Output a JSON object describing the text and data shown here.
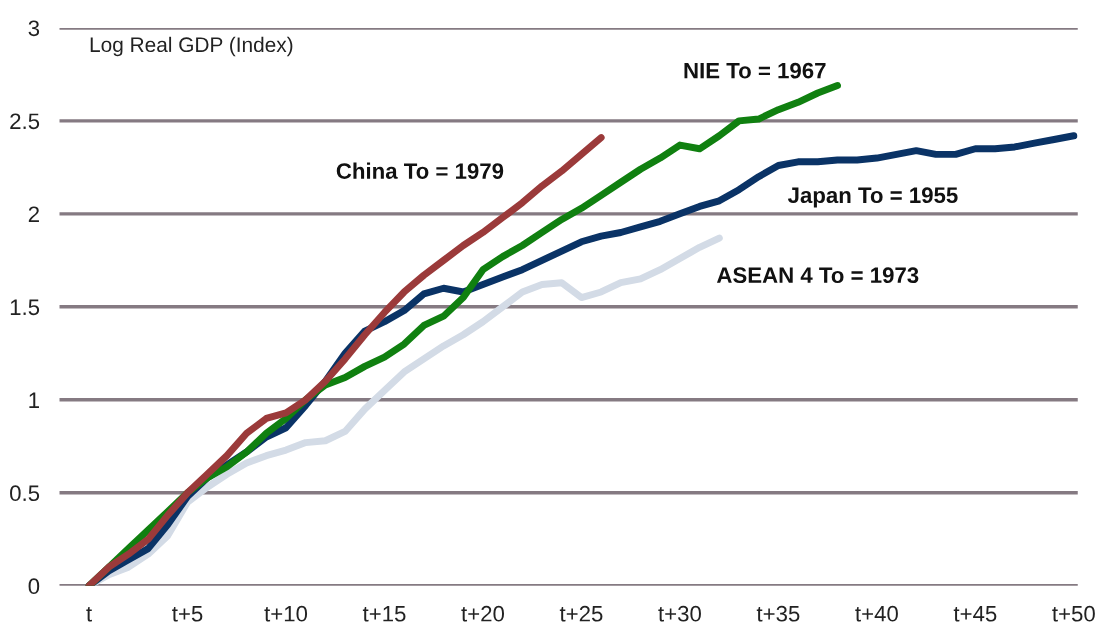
{
  "chart_data": {
    "type": "line",
    "ylabel": "Log Real GDP (Index)",
    "categories": [
      "t",
      null,
      null,
      null,
      null,
      "t+5",
      null,
      null,
      null,
      null,
      "t+10",
      null,
      null,
      null,
      null,
      "t+15",
      null,
      null,
      null,
      null,
      "t+20",
      null,
      null,
      null,
      null,
      "t+25",
      null,
      null,
      null,
      null,
      "t+30",
      null,
      null,
      null,
      null,
      "t+35",
      null,
      null,
      null,
      null,
      "t+40",
      null,
      null,
      null,
      null,
      "t+45",
      null,
      null,
      null,
      null,
      "t+50"
    ],
    "series": [
      {
        "name": "China To = 1979",
        "color": "#9b3a3a",
        "values": [
          0,
          0.1,
          0.17,
          0.25,
          0.38,
          0.5,
          0.6,
          0.7,
          0.82,
          0.9,
          0.93,
          1.0,
          1.1,
          1.22,
          1.35,
          1.47,
          1.58,
          1.67,
          1.75,
          1.83,
          1.9,
          1.98,
          2.06,
          2.15,
          2.23,
          2.32,
          2.41,
          null,
          null,
          null,
          null,
          null,
          null,
          null,
          null,
          null,
          null,
          null,
          null,
          null,
          null,
          null,
          null,
          null,
          null,
          null,
          null,
          null,
          null,
          null,
          null
        ]
      },
      {
        "name": "NIE To = 1967",
        "color": "#108010",
        "values": [
          0,
          0.1,
          0.2,
          0.3,
          0.4,
          0.5,
          0.58,
          0.64,
          0.72,
          0.82,
          0.9,
          1.0,
          1.08,
          1.12,
          1.18,
          1.23,
          1.3,
          1.4,
          1.45,
          1.55,
          1.7,
          1.77,
          1.83,
          1.9,
          1.97,
          2.03,
          2.1,
          2.17,
          2.24,
          2.3,
          2.37,
          2.35,
          2.42,
          2.5,
          2.51,
          2.56,
          2.6,
          2.65,
          2.69,
          null,
          null,
          null,
          null,
          null,
          null,
          null,
          null,
          null,
          null,
          null,
          null
        ]
      },
      {
        "name": "Japan To = 1955",
        "color": "#0a3366",
        "values": [
          0,
          0.08,
          0.14,
          0.2,
          0.33,
          0.48,
          0.58,
          0.65,
          0.72,
          0.8,
          0.85,
          0.97,
          1.1,
          1.25,
          1.37,
          1.42,
          1.48,
          1.57,
          1.6,
          1.58,
          1.62,
          1.66,
          1.7,
          1.75,
          1.8,
          1.85,
          1.88,
          1.9,
          1.93,
          1.96,
          2.0,
          2.04,
          2.07,
          2.13,
          2.2,
          2.26,
          2.28,
          2.28,
          2.29,
          2.29,
          2.3,
          2.32,
          2.34,
          2.32,
          2.32,
          2.35,
          2.35,
          2.36,
          2.38,
          2.4,
          2.42
        ]
      },
      {
        "name": "ASEAN 4 To = 1973",
        "color": "#d3dbe6",
        "values": [
          0,
          0.06,
          0.1,
          0.17,
          0.27,
          0.45,
          0.53,
          0.6,
          0.66,
          0.7,
          0.73,
          0.77,
          0.78,
          0.83,
          0.95,
          1.05,
          1.15,
          1.22,
          1.29,
          1.35,
          1.42,
          1.5,
          1.58,
          1.62,
          1.63,
          1.55,
          1.58,
          1.63,
          1.65,
          1.7,
          1.76,
          1.82,
          1.87,
          null,
          null,
          null,
          null,
          null,
          null,
          null,
          null,
          null,
          null,
          null,
          null,
          null,
          null,
          null,
          null,
          null,
          null
        ]
      }
    ],
    "ylim": [
      0,
      3
    ],
    "yticks": [
      0,
      0.5,
      1,
      1.5,
      2,
      2.5,
      3
    ],
    "grid": "y",
    "legend": false,
    "line_style": "solid",
    "marker": "none"
  }
}
